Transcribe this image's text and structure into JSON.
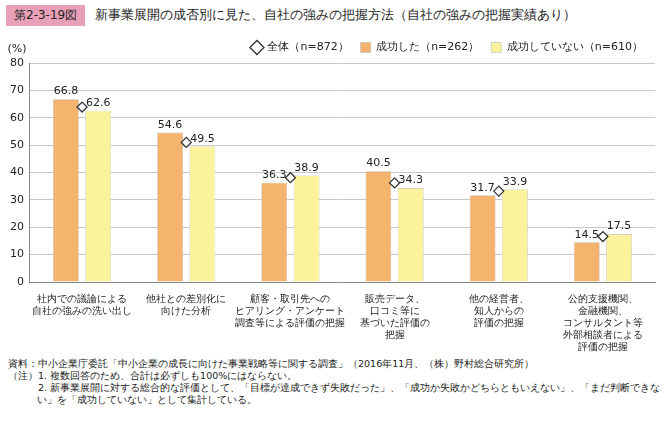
{
  "chart_data": {
    "type": "bar",
    "figure_number": "第2-3-19図",
    "title": "新事業展開の成否別に見た、自社の強みの把握方法（自社の強みの把握実績あり）",
    "y_label": "(%)",
    "categories": [
      [
        "社内での議論による",
        "自社の強みの洗い出し"
      ],
      [
        "他社との差別化に",
        "向けた分析"
      ],
      [
        "顧客・取引先への",
        "ヒアリング・アンケート",
        "調査等による評価の把握"
      ],
      [
        "販売データ、",
        "口コミ等に",
        "基づいた評価の",
        "把握"
      ],
      [
        "他の経営者、",
        "知人からの",
        "評価の把握"
      ],
      [
        "公的支援機関、",
        "金融機関、",
        "コンサルタント等",
        "外部相談者による",
        "評価の把握"
      ]
    ],
    "series": [
      {
        "name": "成功した（n=262）",
        "type": "bar",
        "color": "#f5b46e",
        "data_labels": true,
        "values": [
          66.8,
          54.6,
          36.3,
          40.5,
          31.7,
          14.5
        ]
      },
      {
        "name": "成功していない（n=610）",
        "type": "bar",
        "color": "#fbf39c",
        "data_labels": true,
        "values": [
          62.6,
          49.5,
          38.9,
          34.3,
          33.9,
          17.5
        ]
      },
      {
        "name": "全体（n=872）",
        "type": "scatter",
        "marker": "diamond",
        "line_style": "none",
        "color": "#333333",
        "values": [
          63.9,
          51.0,
          38.1,
          36.2,
          33.2,
          16.6
        ]
      }
    ],
    "ylim": [
      0,
      80
    ],
    "yticks": [
      0,
      10,
      20,
      30,
      40,
      50,
      60,
      70,
      80
    ],
    "grid": true,
    "legend": "top-right",
    "notes": [
      "資料：中小企業庁委託「中小企業の成長に向けた事業戦略等に関する調査」（2016年11月、（株）野村総合研究所）",
      "（注）1. 複数回答のため、合計は必ずしも100%にはならない。",
      "　　　2. 新事業展開に対する総合的な評価として、「目標が達成できず失敗だった」、「成功か失敗かどちらともいえない」、「まだ判断できない」を「成功していない」として集計している。"
    ]
  }
}
